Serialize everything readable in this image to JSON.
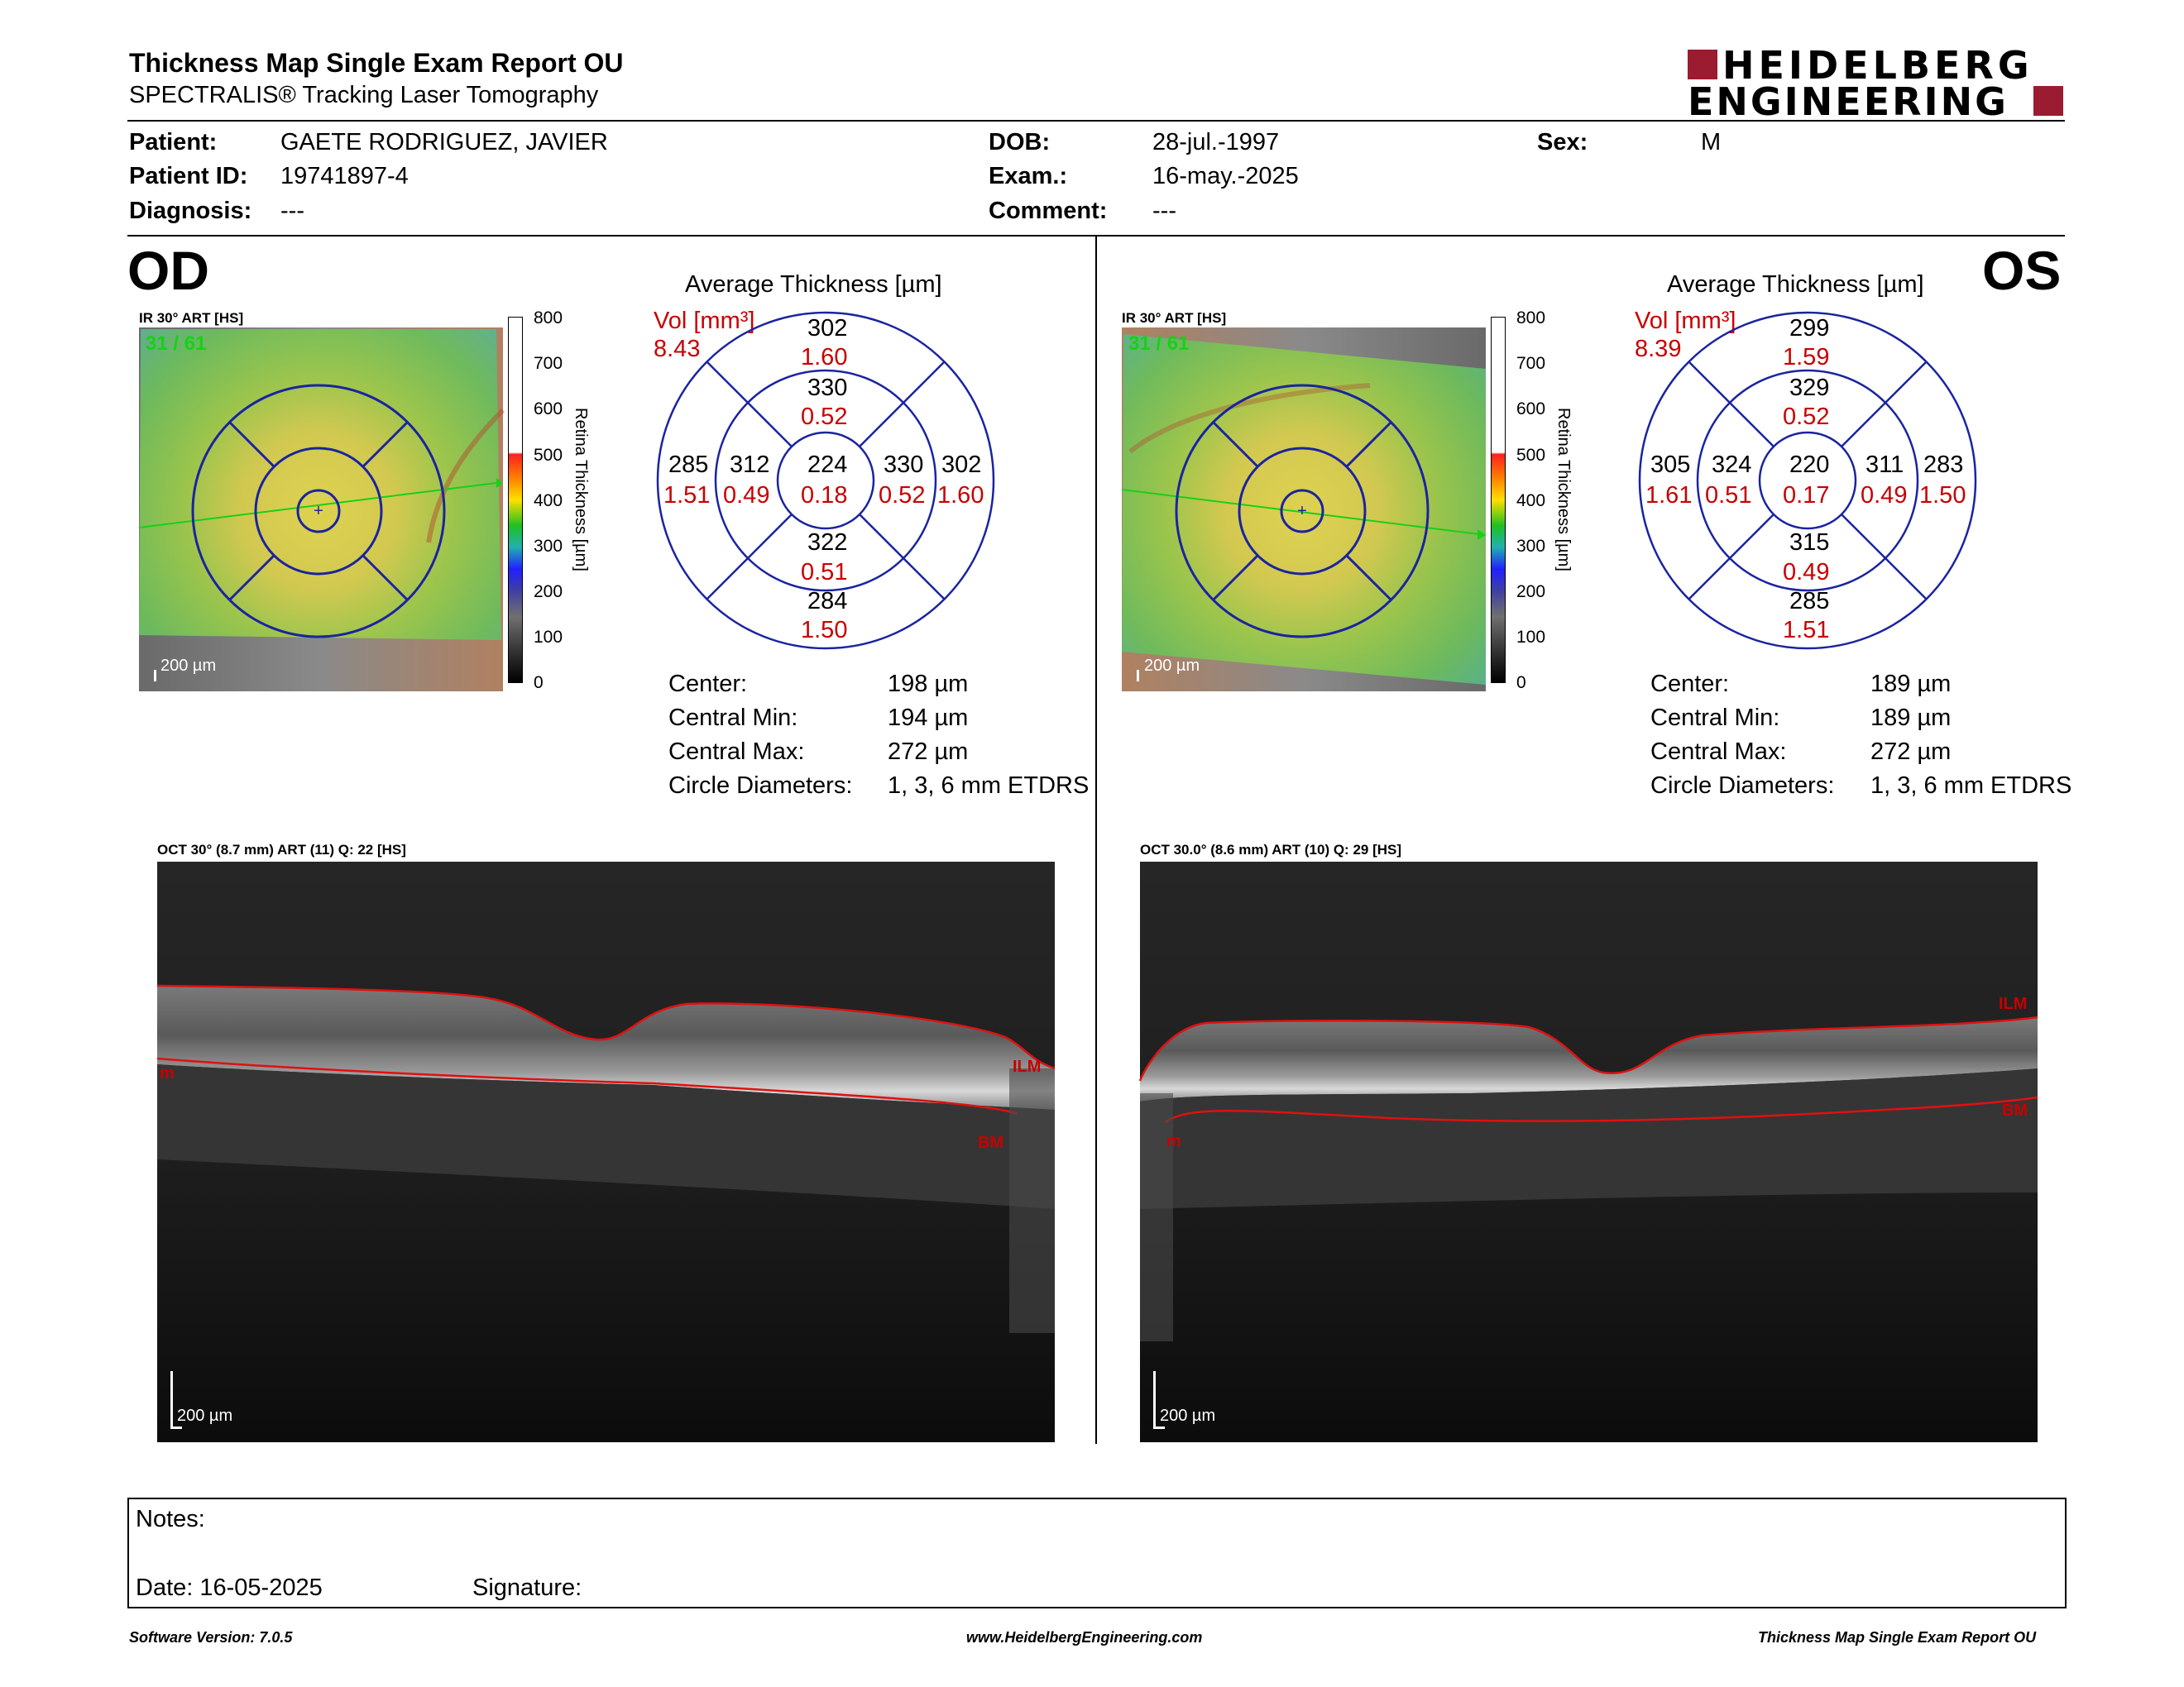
{
  "header": {
    "title": "Thickness Map Single Exam Report OU",
    "subtitle": "SPECTRALIS® Tracking Laser Tomography",
    "logo_line1": "HEIDELBERG",
    "logo_line2": "ENGINEERING",
    "brand_color": "#9b1b30"
  },
  "patient": {
    "patient_label": "Patient:",
    "patient_value": "GAETE RODRIGUEZ, JAVIER",
    "id_label": "Patient ID:",
    "id_value": "19741897-4",
    "diagnosis_label": "Diagnosis:",
    "diagnosis_value": "---",
    "dob_label": "DOB:",
    "dob_value": "28-jul.-1997",
    "exam_label": "Exam.:",
    "exam_value": "16-may.-2025",
    "comment_label": "Comment:",
    "comment_value": "---",
    "sex_label": "Sex:",
    "sex_value": "M"
  },
  "od": {
    "eye": "OD",
    "ir_label": "IR 30° ART [HS]",
    "frame": "31 / 61",
    "scale": "200 µm",
    "avg_title": "Average Thickness [µm]",
    "vol_label": "Vol [mm³]",
    "vol_value": "8.43",
    "grid": {
      "center": {
        "t": "224",
        "v": "0.18"
      },
      "inner_top": {
        "t": "330",
        "v": "0.52"
      },
      "inner_bottom": {
        "t": "322",
        "v": "0.51"
      },
      "inner_left": {
        "t": "312",
        "v": "0.49"
      },
      "inner_right": {
        "t": "330",
        "v": "0.52"
      },
      "outer_top": {
        "t": "302",
        "v": "1.60"
      },
      "outer_bottom": {
        "t": "284",
        "v": "1.50"
      },
      "outer_left": {
        "t": "285",
        "v": "1.51"
      },
      "outer_right": {
        "t": "302",
        "v": "1.60"
      }
    },
    "stats": [
      {
        "label": "Center:",
        "value": "198 µm"
      },
      {
        "label": "Central Min:",
        "value": "194 µm"
      },
      {
        "label": "Central Max:",
        "value": "272 µm"
      },
      {
        "label": "Circle Diameters:",
        "value": "1, 3, 6 mm ETDRS"
      }
    ],
    "oct_label": "OCT 30° (8.7 mm) ART (11) Q: 22 [HS]",
    "oct_scale": "200 µm",
    "ilm": "ILM",
    "bm": "BM",
    "m": "m"
  },
  "os": {
    "eye": "OS",
    "ir_label": "IR 30° ART [HS]",
    "frame": "31 / 61",
    "scale": "200 µm",
    "avg_title": "Average Thickness [µm]",
    "vol_label": "Vol [mm³]",
    "vol_value": "8.39",
    "grid": {
      "center": {
        "t": "220",
        "v": "0.17"
      },
      "inner_top": {
        "t": "329",
        "v": "0.52"
      },
      "inner_bottom": {
        "t": "315",
        "v": "0.49"
      },
      "inner_left": {
        "t": "324",
        "v": "0.51"
      },
      "inner_right": {
        "t": "311",
        "v": "0.49"
      },
      "outer_top": {
        "t": "299",
        "v": "1.59"
      },
      "outer_bottom": {
        "t": "285",
        "v": "1.51"
      },
      "outer_left": {
        "t": "305",
        "v": "1.61"
      },
      "outer_right": {
        "t": "283",
        "v": "1.50"
      }
    },
    "stats": [
      {
        "label": "Center:",
        "value": "189 µm"
      },
      {
        "label": "Central Min:",
        "value": "189 µm"
      },
      {
        "label": "Central Max:",
        "value": "272 µm"
      },
      {
        "label": "Circle Diameters:",
        "value": "1, 3, 6 mm ETDRS"
      }
    ],
    "oct_label": "OCT 30.0° (8.6 mm) ART (10) Q: 29 [HS]",
    "oct_scale": "200 µm",
    "ilm": "ILM",
    "bm": "BM",
    "m": "m"
  },
  "colorbar": {
    "title": "Retina Thickness [µm]",
    "ticks": [
      "800",
      "700",
      "600",
      "500",
      "400",
      "300",
      "200",
      "100",
      "0"
    ]
  },
  "notes": {
    "notes_label": "Notes:",
    "date_label": "Date: 16-05-2025",
    "signature_label": "Signature:"
  },
  "footer": {
    "software": "Software Version: 7.0.5",
    "url": "www.HeidelbergEngineering.com",
    "report": "Thickness Map Single Exam Report OU"
  }
}
